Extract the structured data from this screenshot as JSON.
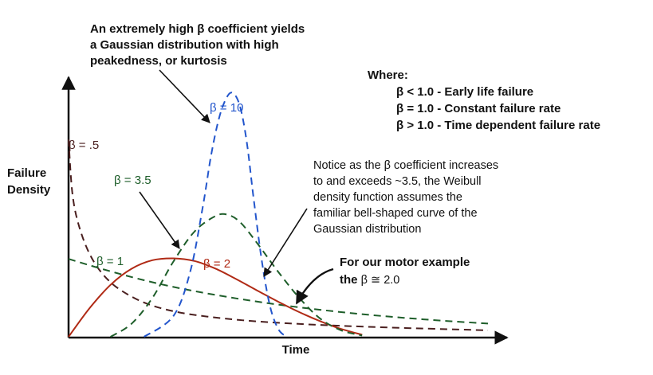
{
  "chart_data": {
    "type": "line",
    "xlabel": "Time",
    "ylabel_line1": "Failure",
    "ylabel_line2": "Density",
    "grid": false,
    "legend": "none",
    "x_range": [
      0,
      1
    ],
    "y_range": [
      0,
      1
    ],
    "series": [
      {
        "name": "β = .5",
        "color": "#4a1f1f",
        "dash": true,
        "x": [
          0.0,
          0.01,
          0.03,
          0.06,
          0.1,
          0.15,
          0.2,
          0.26,
          0.33,
          0.42,
          0.52,
          0.64,
          0.78,
          1.0
        ],
        "y": [
          0.76,
          0.54,
          0.4,
          0.29,
          0.21,
          0.155,
          0.12,
          0.095,
          0.078,
          0.063,
          0.052,
          0.043,
          0.035,
          0.025
        ]
      },
      {
        "name": "β = 1",
        "color": "#1e5e2a",
        "dash": true,
        "x": [
          0.0,
          0.1,
          0.2,
          0.3,
          0.4,
          0.5,
          0.6,
          0.7,
          0.8,
          0.9,
          1.0
        ],
        "y": [
          0.3,
          0.252,
          0.21,
          0.176,
          0.148,
          0.124,
          0.104,
          0.087,
          0.073,
          0.061,
          0.051
        ]
      },
      {
        "name": "β = 2",
        "color": "#b02a15",
        "dash": false,
        "x": [
          0.0,
          0.05,
          0.1,
          0.15,
          0.2,
          0.25,
          0.3,
          0.35,
          0.4,
          0.45,
          0.5,
          0.55,
          0.6,
          0.65,
          0.7
        ],
        "y": [
          0.0,
          0.11,
          0.2,
          0.262,
          0.295,
          0.302,
          0.292,
          0.263,
          0.222,
          0.178,
          0.135,
          0.095,
          0.06,
          0.03,
          0.008
        ]
      },
      {
        "name": "β = 3.5",
        "color": "#1e5e2a",
        "dash": true,
        "x": [
          0.1,
          0.15,
          0.2,
          0.25,
          0.3,
          0.35,
          0.38,
          0.41,
          0.45,
          0.5,
          0.55,
          0.6,
          0.65,
          0.7
        ],
        "y": [
          0.0,
          0.05,
          0.15,
          0.29,
          0.405,
          0.465,
          0.47,
          0.44,
          0.36,
          0.25,
          0.15,
          0.07,
          0.025,
          0.005
        ]
      },
      {
        "name": "β = 10",
        "color": "#2255cc",
        "dash": true,
        "x": [
          0.18,
          0.25,
          0.29,
          0.32,
          0.34,
          0.36,
          0.38,
          0.395,
          0.41,
          0.425,
          0.44,
          0.46,
          0.48,
          0.5,
          0.52
        ],
        "y": [
          0.0,
          0.08,
          0.25,
          0.5,
          0.7,
          0.85,
          0.93,
          0.935,
          0.88,
          0.75,
          0.55,
          0.3,
          0.12,
          0.03,
          0.0
        ]
      }
    ],
    "annotations": {
      "top_note": [
        "An extremely high β coefficient yields",
        "a Gaussian distribution with high",
        "peakedness, or kurtosis"
      ],
      "where_title": "Where:",
      "where_items": [
        "β < 1.0 - Early life failure",
        "β = 1.0 - Constant failure rate",
        "β > 1.0 - Time dependent failure rate"
      ],
      "notice_note": [
        "Notice as the β coefficient increases",
        "to and exceeds ~3.5, the Weibull",
        "density function assumes the",
        "familiar bell-shaped curve of the",
        "Gaussian distribution"
      ],
      "motor_note_line1": "For our motor example",
      "motor_note_prefix": "the ",
      "motor_note_value": "β ≅ 2.0"
    }
  }
}
